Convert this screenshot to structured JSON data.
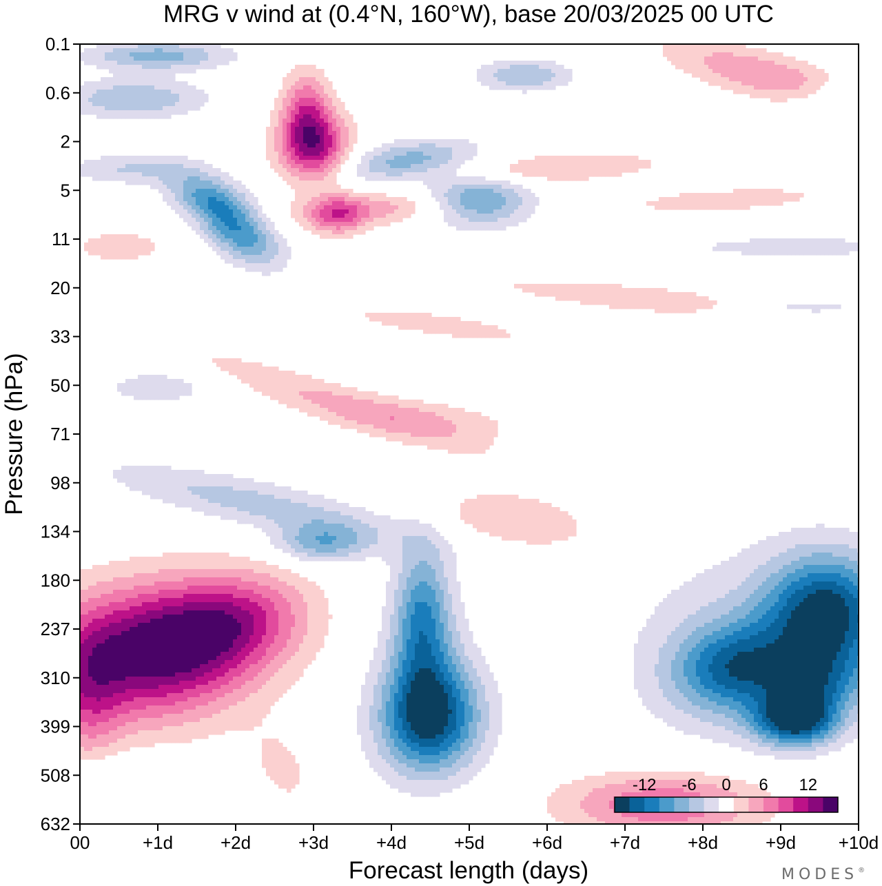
{
  "chart_data": {
    "type": "heatmap",
    "title": "MRG v wind at (0.4°N, 160°W),  base 20/03/2025  00 UTC",
    "xlabel": "Forecast length (days)",
    "ylabel": "Pressure (hPa)",
    "x_ticks": [
      "00",
      "+1d",
      "+2d",
      "+3d",
      "+4d",
      "+5d",
      "+6d",
      "+7d",
      "+8d",
      "+9d",
      "+10d"
    ],
    "xlim": [
      0,
      10
    ],
    "y_ticks": [
      "0.1",
      "0.6",
      "2",
      "5",
      "11",
      "20",
      "33",
      "50",
      "71",
      "98",
      "134",
      "180",
      "237",
      "310",
      "399",
      "508",
      "632"
    ],
    "y_order": "pressure increasing downward",
    "colorbar": {
      "tick_labels": [
        "-12",
        "-6",
        "0",
        "6",
        "12"
      ],
      "levels": [
        -14,
        -12,
        -10,
        -8,
        -6,
        -4,
        -2,
        2,
        4,
        6,
        8,
        10,
        12,
        14
      ],
      "colors": [
        "#0b3f5e",
        "#0a6299",
        "#1a7dbb",
        "#4b9bcb",
        "#85b3d6",
        "#b6c7e2",
        "#dedbed",
        "#ffffff",
        "#fbd0d0",
        "#f7a6bd",
        "#f17aac",
        "#e24b9d",
        "#bd1288",
        "#8a087c",
        "#4a0367"
      ],
      "placement": "bottom-right"
    },
    "features": [
      {
        "x_day": 0.8,
        "pressure": 237,
        "value": 15
      },
      {
        "x_day": 2.0,
        "pressure": 180,
        "value": 14
      },
      {
        "x_day": 3.0,
        "pressure": 2,
        "value": 12
      },
      {
        "x_day": 4.6,
        "pressure": 360,
        "value": -14
      },
      {
        "x_day": 4.5,
        "pressure": 190,
        "value": -8
      },
      {
        "x_day": 9.6,
        "pressure": 190,
        "value": -14
      },
      {
        "x_day": 8.5,
        "pressure": 260,
        "value": -10
      },
      {
        "x_day": 5.1,
        "pressure": 5,
        "value": -10
      },
      {
        "x_day": 7.5,
        "pressure": 560,
        "value": 8
      },
      {
        "x_day": 3.0,
        "pressure": 98,
        "value": -6
      }
    ]
  },
  "brand": "MODES",
  "brand_mark": "®"
}
